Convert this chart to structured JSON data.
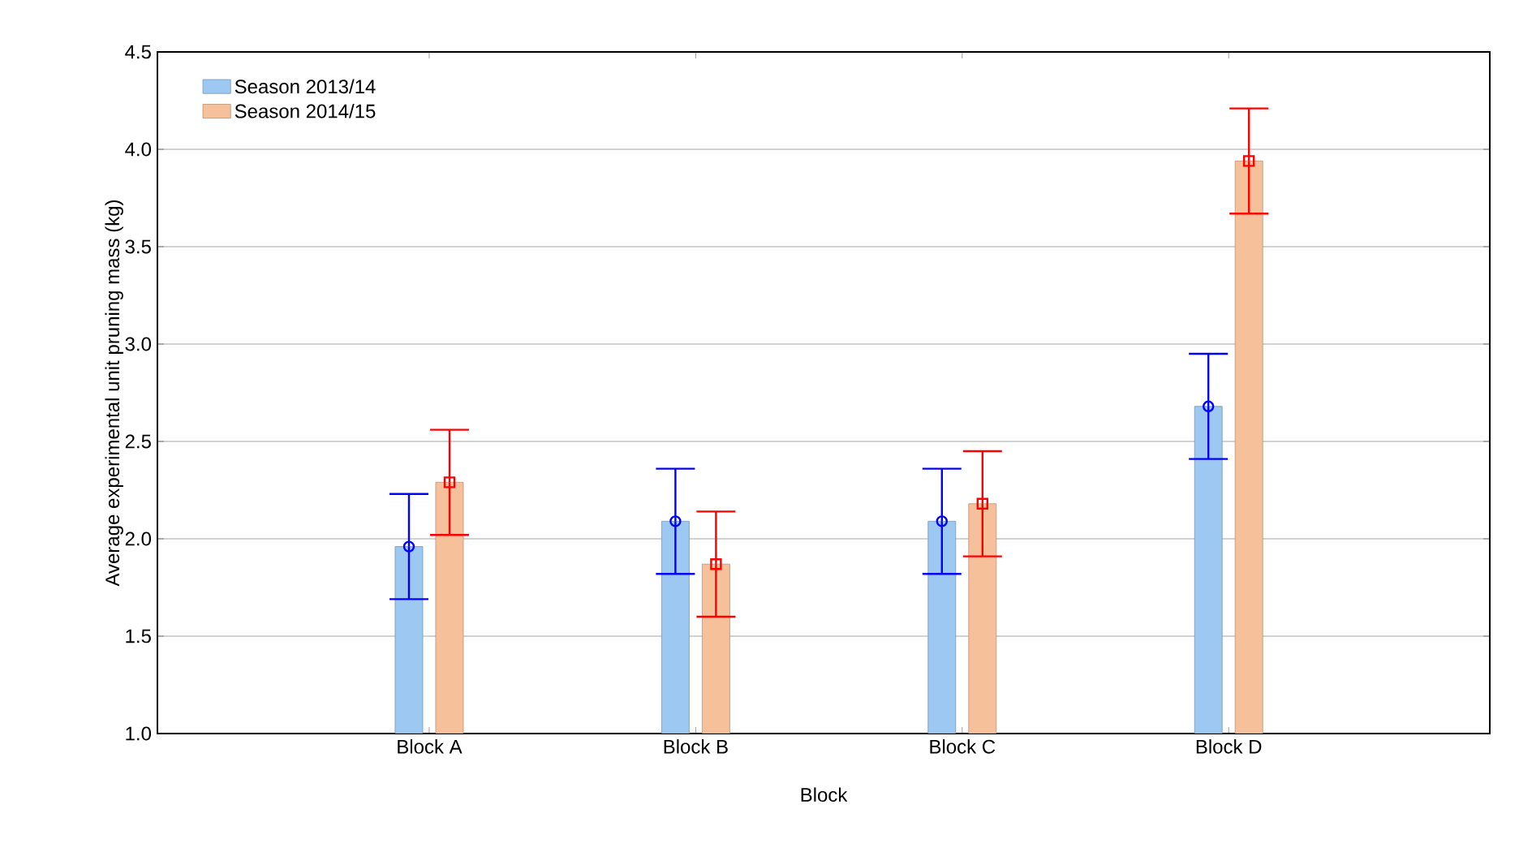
{
  "chart_data": {
    "type": "bar",
    "xlabel": "Block",
    "ylabel": "Average experimental unit pruning mass  (kg)",
    "categories": [
      "Block A",
      "Block B",
      "Block C",
      "Block D"
    ],
    "series": [
      {
        "name": "Season 2013/14",
        "color": "#9cc8f2",
        "values": [
          1.96,
          2.09,
          2.09,
          2.68
        ]
      },
      {
        "name": "Season 2014/15",
        "color": "#f5c09a",
        "values": [
          2.29,
          1.87,
          2.18,
          3.94
        ]
      },
      {
        "type": "scatter",
        "color": "#0000ff",
        "marker": "circle",
        "x": [
          "Block A",
          "Block B",
          "Block C",
          "Block D"
        ],
        "values": [
          1.96,
          2.09,
          2.09,
          2.68
        ],
        "errors": [
          0.27,
          0.27,
          0.27,
          0.27
        ]
      },
      {
        "type": "scatter",
        "color": "#ff0000",
        "marker": "square",
        "x": [
          "Block A",
          "Block B",
          "Block C",
          "Block D"
        ],
        "values": [
          2.29,
          1.87,
          2.18,
          3.94
        ],
        "errors": [
          0.27,
          0.27,
          0.27,
          0.27
        ]
      }
    ],
    "ylim": [
      1.0,
      4.5
    ],
    "yticks": [
      {
        "value": 1.0,
        "label": "1.0"
      },
      {
        "value": 1.5,
        "label": "1.5"
      },
      {
        "value": 2.0,
        "label": "2.0"
      },
      {
        "value": 2.5,
        "label": "2.5"
      },
      {
        "value": 3.0,
        "label": "3.0"
      },
      {
        "value": 3.5,
        "label": "3.5"
      },
      {
        "value": 4.0,
        "label": "4.0"
      },
      {
        "value": 4.5,
        "label": "4.5"
      }
    ],
    "grid": "y",
    "legend": "top left"
  }
}
